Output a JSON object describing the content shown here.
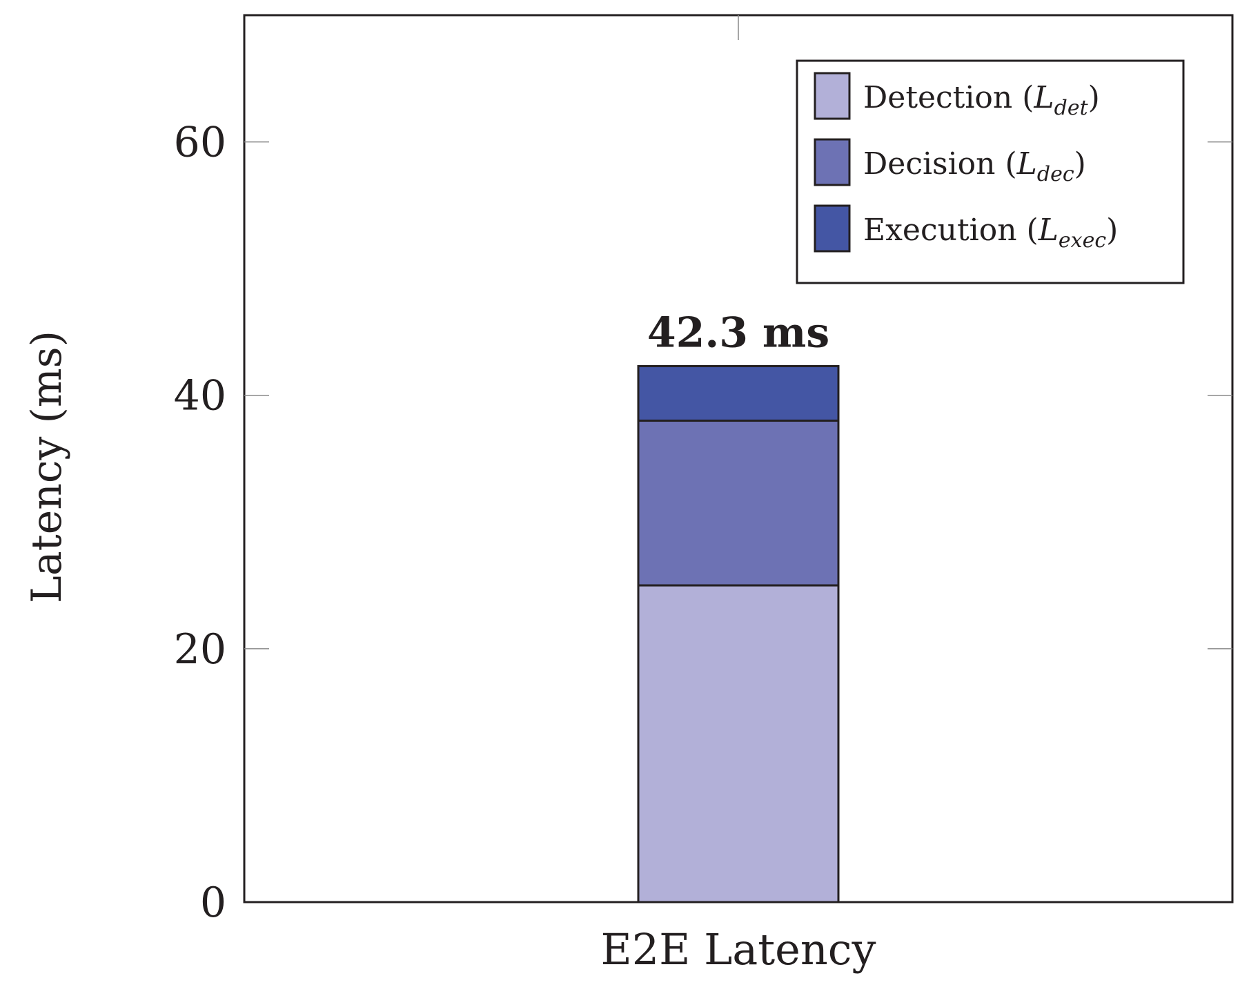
{
  "chart_data": {
    "type": "bar",
    "stacked": true,
    "categories": [
      "E2E Latency"
    ],
    "series": [
      {
        "name": "Detection",
        "symbol": "L",
        "subscript": "det",
        "values": [
          25.0
        ],
        "color": "#b2b0d8"
      },
      {
        "name": "Decision",
        "symbol": "L",
        "subscript": "dec",
        "values": [
          13.0
        ],
        "color": "#6d72b4"
      },
      {
        "name": "Execution",
        "symbol": "L",
        "subscript": "exec",
        "values": [
          4.3
        ],
        "color": "#4456a4"
      }
    ],
    "total_label": "42.3 ms",
    "ylabel": "Latency (ms)",
    "xlabel": "",
    "ylim": [
      0,
      70
    ],
    "yticks": [
      0,
      20,
      40,
      60
    ],
    "grid": false,
    "legend_position": "top-right"
  }
}
